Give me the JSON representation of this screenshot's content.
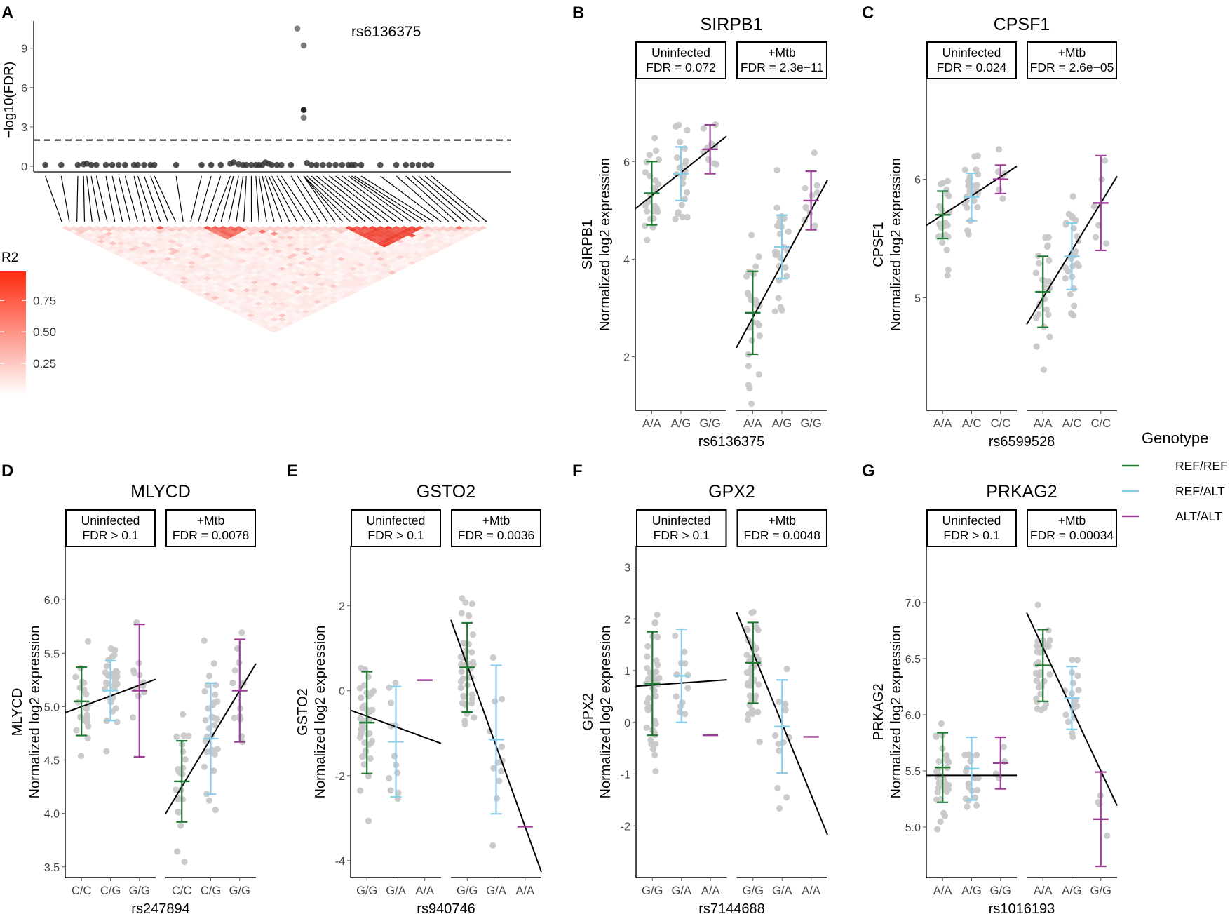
{
  "colors": {
    "ref_ref": "#1f7a33",
    "ref_alt": "#87ceeb",
    "alt_alt": "#9b3f96",
    "points": "#c8c8c8",
    "ld": "#ee3322"
  },
  "legend": {
    "title": "Genotype",
    "entries": [
      "REF/REF",
      "REF/ALT",
      "ALT/ALT"
    ]
  },
  "chart_data": [
    {
      "type": "scatter",
      "panel": "A",
      "title": "",
      "ylabel": "−log10(FDR)",
      "ylim": [
        0,
        11
      ],
      "yticks": [
        0,
        3,
        6,
        9
      ],
      "threshold": 2,
      "highlight_label": "rs6136375",
      "points_x": [
        3.5,
        6,
        8.6,
        9.5,
        10,
        10.7,
        11.5,
        13,
        14,
        15,
        16,
        17.4,
        18,
        19,
        20,
        20.6,
        24,
        28,
        29.5,
        31,
        32.5,
        33,
        33.8,
        34.5,
        35,
        35.8,
        36.5,
        37,
        37.5,
        38,
        38.5,
        39,
        39.8,
        40.5,
        42,
        43,
        44,
        44,
        44,
        44.5,
        45.2,
        46,
        47,
        48,
        49,
        50,
        51,
        51.5,
        52,
        53,
        56,
        58.5,
        60,
        61,
        62,
        63,
        64
      ],
      "points_y": [
        0.1,
        0.1,
        0.1,
        0.15,
        0.2,
        0.1,
        0.1,
        0.1,
        0.1,
        0.1,
        0.1,
        0.1,
        0.1,
        0.1,
        0.1,
        0.1,
        0.1,
        0.1,
        0.1,
        0.1,
        0.2,
        0.3,
        0.15,
        0.1,
        0.1,
        0.1,
        0.1,
        0.1,
        0.1,
        0.3,
        0.2,
        0.1,
        0.1,
        0.1,
        0.1,
        10.5,
        9.2,
        4.3,
        3.7,
        0.25,
        0.1,
        0.1,
        0.1,
        0.1,
        0.1,
        0.1,
        0.1,
        0.1,
        0.1,
        0.1,
        0.1,
        0.1,
        0.1,
        0.1,
        0.1,
        0.1,
        0.1
      ],
      "ld_legend": {
        "title": "R2",
        "ticks": [
          0.25,
          0.5,
          0.75
        ]
      }
    },
    {
      "type": "eqtl",
      "panel": "B",
      "title": "SIRPB1",
      "xlabel": "rs6136375",
      "ylabel_gene": "SIRPB1",
      "ylabel": "Normalized log2 expression",
      "ylim": [
        0.9,
        7.7
      ],
      "yticks": [
        2,
        4,
        6
      ],
      "genotypes": [
        "A/A",
        "A/G",
        "G/G"
      ],
      "facets": [
        {
          "label": "Uninfected",
          "fdr": "FDR = 0.072",
          "means": [
            5.35,
            5.75,
            6.25
          ],
          "sd": [
            0.65,
            0.55,
            0.5
          ],
          "spread": [
            0.9,
            0.8,
            0.5
          ],
          "ns": [
            26,
            24,
            10
          ],
          "fit": [
            5.3,
            6.25
          ]
        },
        {
          "label": "+Mtb",
          "fdr": "FDR = 2.3e−11",
          "means": [
            2.9,
            4.25,
            5.2
          ],
          "sd": [
            0.85,
            0.65,
            0.6
          ],
          "spread": [
            1.3,
            0.9,
            0.7
          ],
          "ns": [
            26,
            24,
            10
          ],
          "fit": [
            2.8,
            5.0
          ]
        }
      ]
    },
    {
      "type": "eqtl",
      "panel": "C",
      "title": "CPSF1",
      "xlabel": "rs6599528",
      "ylabel_gene": "CPSF1",
      "ylabel": "Normalized log2 expression",
      "ylim": [
        4.05,
        6.85
      ],
      "yticks": [
        5,
        6
      ],
      "genotypes": [
        "A/A",
        "A/C",
        "C/C"
      ],
      "facets": [
        {
          "label": "Uninfected",
          "fdr": "FDR = 0.024",
          "means": [
            5.7,
            5.85,
            6.0
          ],
          "sd": [
            0.2,
            0.2,
            0.12
          ],
          "spread": [
            0.35,
            0.3,
            0.2
          ],
          "ns": [
            24,
            26,
            6
          ],
          "fit": [
            5.7,
            6.02
          ]
        },
        {
          "label": "+Mtb",
          "fdr": "FDR = 2.6e−05",
          "means": [
            5.05,
            5.35,
            5.8
          ],
          "sd": [
            0.3,
            0.28,
            0.4
          ],
          "spread": [
            0.45,
            0.4,
            0.45
          ],
          "ns": [
            24,
            26,
            6
          ],
          "fit": [
            5.0,
            5.8
          ]
        }
      ]
    },
    {
      "type": "eqtl",
      "panel": "D",
      "title": "MLYCD",
      "xlabel": "rs247894",
      "ylabel_gene": "MLYCD",
      "ylabel": "Normalized log2 expression",
      "ylim": [
        3.4,
        6.5
      ],
      "yticks": [
        3.5,
        4.0,
        4.5,
        5.0,
        5.5,
        6.0
      ],
      "genotypes": [
        "C/C",
        "C/G",
        "G/G"
      ],
      "facets": [
        {
          "label": "Uninfected",
          "fdr": "FDR > 0.1",
          "means": [
            5.05,
            5.15,
            5.15
          ],
          "sd": [
            0.32,
            0.28,
            0.62
          ],
          "spread": [
            0.35,
            0.35,
            0.45
          ],
          "ns": [
            22,
            30,
            12
          ],
          "fit": [
            5.0,
            5.2
          ]
        },
        {
          "label": "+Mtb",
          "fdr": "FDR = 0.0078",
          "means": [
            4.3,
            4.7,
            5.15
          ],
          "sd": [
            0.38,
            0.52,
            0.48
          ],
          "spread": [
            0.45,
            0.6,
            0.45
          ],
          "ns": [
            22,
            30,
            12
          ],
          "fit": [
            4.25,
            5.15
          ]
        }
      ]
    },
    {
      "type": "eqtl",
      "panel": "E",
      "title": "GSTO2",
      "xlabel": "rs940746",
      "ylabel_gene": "GSTO2",
      "ylabel": "Normalized log2 expression",
      "ylim": [
        -4.4,
        3.4
      ],
      "yticks": [
        -4,
        -2,
        0,
        2
      ],
      "genotypes": [
        "G/G",
        "G/A",
        "A/A"
      ],
      "facets": [
        {
          "label": "Uninfected",
          "fdr": "FDR > 0.1",
          "means": [
            -0.75,
            -1.2,
            0.25
          ],
          "sd": [
            1.2,
            1.3,
            0.0
          ],
          "spread": [
            1.4,
            1.4,
            0.0
          ],
          "ns": [
            40,
            12,
            1
          ],
          "fit": [
            -0.6,
            -1.1
          ]
        },
        {
          "label": "+Mtb",
          "fdr": "FDR = 0.0036",
          "means": [
            0.55,
            -1.15,
            -3.2
          ],
          "sd": [
            1.05,
            1.75,
            0.0
          ],
          "spread": [
            1.2,
            1.8,
            0.0
          ],
          "ns": [
            40,
            12,
            1
          ],
          "fit": [
            0.6,
            -3.2
          ]
        }
      ]
    },
    {
      "type": "eqtl",
      "panel": "F",
      "title": "GPX2",
      "xlabel": "rs7144688",
      "ylabel_gene": "GPX2",
      "ylabel": "Normalized log2 expression",
      "ylim": [
        -3.0,
        3.4
      ],
      "yticks": [
        -2,
        -1,
        0,
        1,
        2,
        3
      ],
      "genotypes": [
        "G/G",
        "G/A",
        "A/A"
      ],
      "facets": [
        {
          "label": "Uninfected",
          "fdr": "FDR > 0.1",
          "means": [
            0.75,
            0.9,
            -0.25
          ],
          "sd": [
            1.0,
            0.9,
            0.0
          ],
          "spread": [
            1.1,
            0.8,
            0.0
          ],
          "ns": [
            45,
            12,
            1
          ],
          "fit": [
            0.72,
            0.8
          ]
        },
        {
          "label": "+Mtb",
          "fdr": "FDR = 0.0048",
          "means": [
            1.15,
            -0.08,
            -0.28
          ],
          "sd": [
            0.78,
            0.9,
            0.0
          ],
          "spread": [
            0.9,
            1.0,
            0.0
          ],
          "ns": [
            45,
            12,
            1
          ],
          "fit": [
            1.35,
            -1.4
          ]
        }
      ]
    },
    {
      "type": "eqtl",
      "panel": "G",
      "title": "PRKAG2",
      "xlabel": "rs1016193",
      "ylabel_gene": "PRKAG2",
      "ylabel": "Normalized log2 expression",
      "ylim": [
        4.55,
        7.5
      ],
      "yticks": [
        5.0,
        5.5,
        6.0,
        6.5,
        7.0
      ],
      "genotypes": [
        "A/A",
        "A/G",
        "G/G"
      ],
      "facets": [
        {
          "label": "Uninfected",
          "fdr": "FDR > 0.1",
          "means": [
            5.53,
            5.52,
            5.57
          ],
          "sd": [
            0.31,
            0.28,
            0.23
          ],
          "spread": [
            0.38,
            0.3,
            0.2
          ],
          "ns": [
            36,
            18,
            4
          ],
          "fit": [
            5.46,
            5.46
          ]
        },
        {
          "label": "+Mtb",
          "fdr": "FDR = 0.00034",
          "means": [
            6.44,
            6.15,
            5.07
          ],
          "sd": [
            0.32,
            0.28,
            0.42
          ],
          "spread": [
            0.35,
            0.3,
            0.3
          ],
          "ns": [
            36,
            18,
            4
          ],
          "fit": [
            6.6,
            5.5
          ]
        }
      ]
    }
  ]
}
